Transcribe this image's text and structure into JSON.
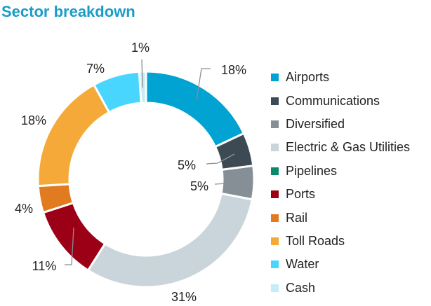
{
  "chart_data": {
    "type": "pie",
    "title": "Sector breakdown",
    "donut": true,
    "legend_position": "right",
    "categories": [
      "Airports",
      "Communications",
      "Diversified",
      "Electric & Gas Utilities",
      "Pipelines",
      "Ports",
      "Rail",
      "Toll Roads",
      "Water",
      "Cash"
    ],
    "values": [
      18,
      5,
      5,
      31,
      0,
      11,
      4,
      18,
      7,
      1
    ],
    "labels": [
      "18%",
      "5%",
      "5%",
      "31%",
      "",
      "11%",
      "4%",
      "18%",
      "7%",
      "1%"
    ],
    "colors": [
      "#00a3d1",
      "#3d4a54",
      "#868e96",
      "#c9d5da",
      "#0b8a6b",
      "#9b0016",
      "#e07b20",
      "#f5a939",
      "#48d6ff",
      "#c4ecf9"
    ]
  }
}
